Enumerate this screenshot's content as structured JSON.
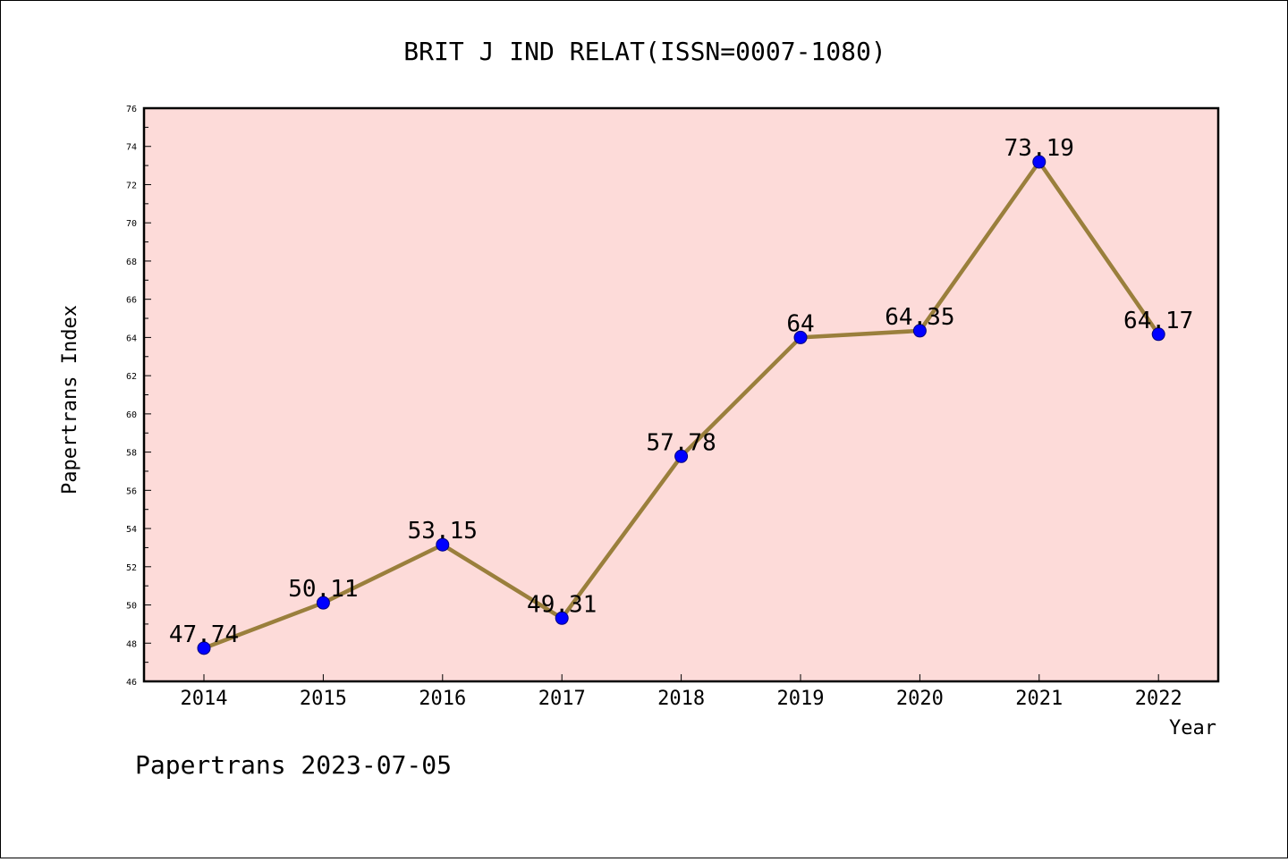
{
  "chart_data": {
    "type": "line",
    "title": "BRIT J IND RELAT(ISSN=0007-1080)",
    "xlabel": "Year",
    "ylabel": "Papertrans Index",
    "categories": [
      "2014",
      "2015",
      "2016",
      "2017",
      "2018",
      "2019",
      "2020",
      "2021",
      "2022"
    ],
    "values": [
      47.74,
      50.11,
      53.15,
      49.31,
      57.78,
      64,
      64.35,
      73.19,
      64.17
    ],
    "data_labels": [
      "47.74",
      "50.11",
      "53.15",
      "49.31",
      "57.78",
      "64",
      "64.35",
      "73.19",
      "64.17"
    ],
    "ylim": [
      46,
      76
    ],
    "yticks": [
      46,
      48,
      50,
      52,
      54,
      56,
      58,
      60,
      62,
      64,
      66,
      68,
      70,
      72,
      74,
      76
    ],
    "grid": false,
    "legend": "none",
    "colors": {
      "plot_background": "#FDDBD9",
      "line": "#9A7F3C",
      "marker": "#0000FF",
      "marker_edge": "#000080"
    }
  },
  "footer": "Papertrans 2023-07-05"
}
